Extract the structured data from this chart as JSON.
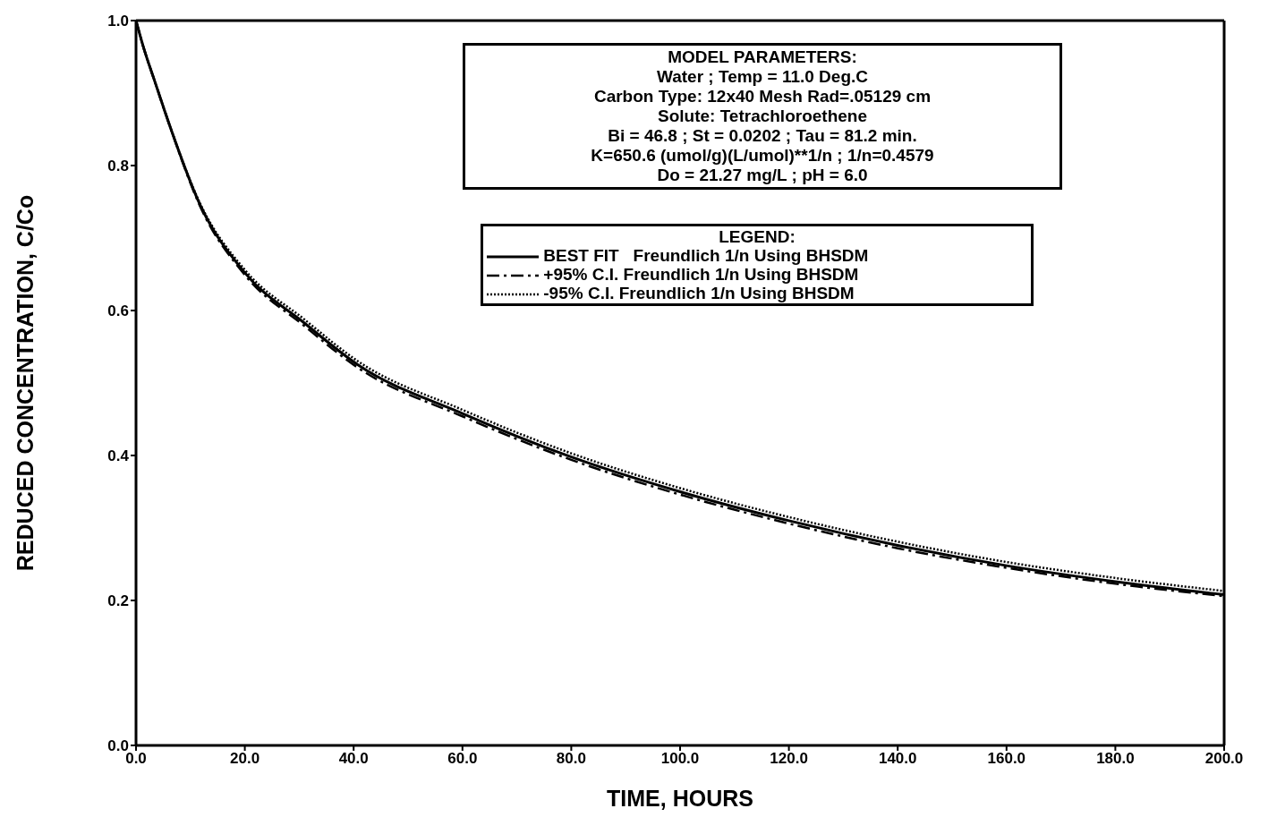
{
  "chart_data": {
    "type": "line",
    "xlabel": "TIME, HOURS",
    "ylabel": "REDUCED CONCENTRATION, C/Co",
    "legend_title": "LEGEND:",
    "legend": "top right",
    "annotations": [
      "MODEL PARAMETERS:",
      "Water ; Temp = 11.0 Deg.C",
      "Carbon Type: 12x40 Mesh  Rad=.05129 cm",
      "Solute: Tetrachloroethene",
      "Bi = 46.8 ; St = 0.0202 ; Tau = 81.2 min.",
      "K=650.6 (umol/g)(L/umol)**1/n ; 1/n=0.4579",
      "Do = 21.27 mg/L ; pH = 6.0"
    ],
    "x": [
      0,
      1.3,
      3.5,
      6.2,
      11.7,
      19.9,
      30.9,
      40.8,
      60,
      80,
      100,
      120,
      140,
      160,
      180,
      200
    ],
    "xlim": [
      0,
      200
    ],
    "ylim": [
      0,
      1
    ],
    "xticks": [
      {
        "value": 0,
        "label": "0.0"
      },
      {
        "value": 20,
        "label": "20.0"
      },
      {
        "value": 40,
        "label": "40.0"
      },
      {
        "value": 60,
        "label": "60.0"
      },
      {
        "value": 80,
        "label": "80.0"
      },
      {
        "value": 100,
        "label": "100.0"
      },
      {
        "value": 120,
        "label": "120.0"
      },
      {
        "value": 140,
        "label": "140.0"
      },
      {
        "value": 160,
        "label": "160.0"
      },
      {
        "value": 180,
        "label": "180.0"
      },
      {
        "value": 200,
        "label": "200.0"
      }
    ],
    "yticks": [
      {
        "value": 0,
        "label": "0.0"
      },
      {
        "value": 0.2,
        "label": "0.2"
      },
      {
        "value": 0.4,
        "label": "0.4"
      },
      {
        "value": 0.6,
        "label": "0.6"
      },
      {
        "value": 0.8,
        "label": "0.8"
      },
      {
        "value": 1,
        "label": "1.0"
      }
    ],
    "marker": "none",
    "series": [
      {
        "name": "BEST FIT   Freundlich 1/n Using BHSDM",
        "color": "#000000",
        "line_style": "solid",
        "values": [
          1.0,
          0.965,
          0.915,
          0.855,
          0.747,
          0.653,
          0.583,
          0.525,
          0.458,
          0.398,
          0.35,
          0.31,
          0.276,
          0.248,
          0.226,
          0.208
        ]
      },
      {
        "name": "+95% C.I. Freundlich 1/n Using BHSDM",
        "color": "#000000",
        "line_style": "dashed",
        "values": [
          1.0,
          0.965,
          0.915,
          0.855,
          0.745,
          0.65,
          0.579,
          0.521,
          0.454,
          0.394,
          0.346,
          0.306,
          0.272,
          0.245,
          0.223,
          0.206
        ]
      },
      {
        "name": "-95% C.I. Freundlich 1/n Using BHSDM",
        "color": "#000000",
        "line_style": "dotted",
        "values": [
          1.0,
          0.965,
          0.915,
          0.855,
          0.749,
          0.657,
          0.588,
          0.53,
          0.463,
          0.403,
          0.355,
          0.315,
          0.281,
          0.253,
          0.231,
          0.213
        ]
      }
    ]
  }
}
